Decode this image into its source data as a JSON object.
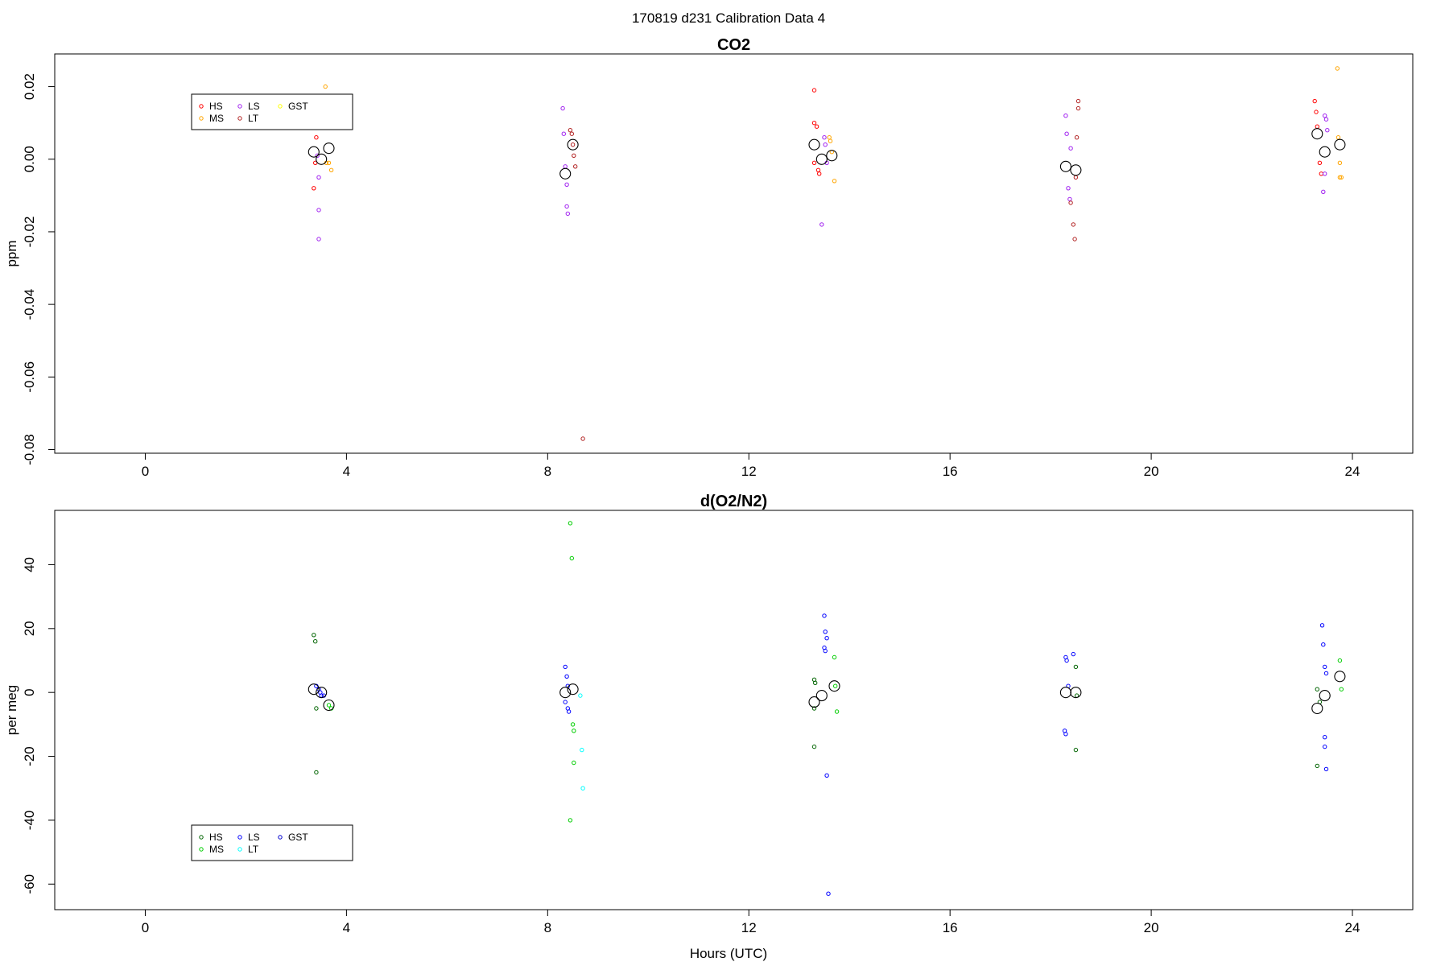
{
  "figure": {
    "title": "170819   d231   Calibration Data 4",
    "xlabel": "Hours (UTC)"
  },
  "chart_data": [
    {
      "type": "scatter",
      "title": "CO2",
      "ylabel": "ppm",
      "xlim": [
        -1.8,
        25.2
      ],
      "ylim": [
        -0.081,
        0.029
      ],
      "xticks": [
        0,
        4,
        8,
        12,
        16,
        20,
        24
      ],
      "xtick_labels": [
        "0",
        "4",
        "8",
        "12",
        "16",
        "20",
        "24"
      ],
      "yticks": [
        -0.08,
        -0.06,
        -0.04,
        -0.02,
        0.0,
        0.02
      ],
      "ytick_labels": [
        "-0.08",
        "-0.06",
        "-0.04",
        "-0.02",
        "0.00",
        "0.02"
      ],
      "legend": {
        "placement": "top-left",
        "ncol": 3
      },
      "series": [
        {
          "name": "HS",
          "color": "#ff0000",
          "points": [
            [
              3.35,
              -0.008
            ],
            [
              3.38,
              -0.001
            ],
            [
              3.4,
              0.006
            ],
            [
              3.45,
              0.009
            ],
            [
              13.3,
              0.019
            ],
            [
              13.3,
              0.01
            ],
            [
              13.35,
              0.009
            ],
            [
              13.3,
              -0.001
            ],
            [
              13.38,
              -0.003
            ],
            [
              13.4,
              -0.004
            ],
            [
              23.25,
              0.016
            ],
            [
              23.28,
              0.013
            ],
            [
              23.3,
              0.009
            ],
            [
              23.35,
              -0.001
            ],
            [
              23.38,
              -0.004
            ]
          ]
        },
        {
          "name": "MS",
          "color": "#ffa500",
          "points": [
            [
              3.58,
              0.02
            ],
            [
              3.6,
              -0.001
            ],
            [
              3.65,
              -0.001
            ],
            [
              3.7,
              -0.003
            ],
            [
              13.6,
              0.006
            ],
            [
              13.62,
              0.005
            ],
            [
              13.65,
              0.002
            ],
            [
              13.7,
              -0.006
            ],
            [
              23.7,
              0.025
            ],
            [
              23.72,
              0.006
            ],
            [
              23.75,
              -0.001
            ],
            [
              23.75,
              -0.005
            ],
            [
              23.78,
              -0.005
            ]
          ]
        },
        {
          "name": "LS",
          "color": "#a020f0",
          "points": [
            [
              3.42,
              0.001
            ],
            [
              3.45,
              -0.005
            ],
            [
              3.45,
              -0.014
            ],
            [
              3.45,
              -0.022
            ],
            [
              8.3,
              0.014
            ],
            [
              8.32,
              0.007
            ],
            [
              8.35,
              -0.002
            ],
            [
              8.38,
              -0.007
            ],
            [
              8.38,
              -0.013
            ],
            [
              8.4,
              -0.015
            ],
            [
              13.5,
              0.006
            ],
            [
              13.52,
              0.004
            ],
            [
              13.55,
              -0.001
            ],
            [
              13.45,
              -0.018
            ],
            [
              18.3,
              0.012
            ],
            [
              18.32,
              0.007
            ],
            [
              18.35,
              -0.008
            ],
            [
              18.38,
              -0.011
            ],
            [
              18.4,
              0.003
            ],
            [
              23.45,
              0.012
            ],
            [
              23.48,
              0.011
            ],
            [
              23.5,
              0.008
            ],
            [
              23.45,
              -0.004
            ],
            [
              23.42,
              -0.009
            ]
          ]
        },
        {
          "name": "LT",
          "color": "#b22222",
          "points": [
            [
              8.45,
              0.008
            ],
            [
              8.48,
              0.007
            ],
            [
              8.5,
              0.004
            ],
            [
              8.52,
              0.001
            ],
            [
              8.55,
              -0.002
            ],
            [
              8.7,
              -0.077
            ],
            [
              18.4,
              -0.012
            ],
            [
              18.45,
              -0.018
            ],
            [
              18.48,
              -0.022
            ],
            [
              18.5,
              -0.005
            ],
            [
              18.52,
              0.006
            ],
            [
              18.55,
              0.014
            ],
            [
              18.55,
              0.016
            ]
          ]
        },
        {
          "name": "GST",
          "color": "#ffff00",
          "points": []
        }
      ],
      "means": [
        [
          3.35,
          0.002
        ],
        [
          3.5,
          0.0
        ],
        [
          3.65,
          0.003
        ],
        [
          8.35,
          -0.004
        ],
        [
          8.5,
          0.004
        ],
        [
          13.3,
          0.004
        ],
        [
          13.45,
          0.0
        ],
        [
          13.65,
          0.001
        ],
        [
          18.3,
          -0.002
        ],
        [
          18.5,
          -0.003
        ],
        [
          23.3,
          0.007
        ],
        [
          23.45,
          0.002
        ],
        [
          23.75,
          0.004
        ]
      ]
    },
    {
      "type": "scatter",
      "title": "d(O2/N2)",
      "ylabel": "per meg",
      "xlim": [
        -1.8,
        25.2
      ],
      "ylim": [
        -68,
        57
      ],
      "xticks": [
        0,
        4,
        8,
        12,
        16,
        20,
        24
      ],
      "xtick_labels": [
        "0",
        "4",
        "8",
        "12",
        "16",
        "20",
        "24"
      ],
      "yticks": [
        -60,
        -40,
        -20,
        0,
        20,
        40
      ],
      "ytick_labels": [
        "-60",
        "-40",
        "-20",
        "0",
        "20",
        "40"
      ],
      "legend": {
        "placement": "bottom-left",
        "ncol": 3
      },
      "series": [
        {
          "name": "HS",
          "color": "#006400",
          "points": [
            [
              3.35,
              18
            ],
            [
              3.38,
              16
            ],
            [
              3.4,
              -5
            ],
            [
              3.4,
              -25
            ],
            [
              13.3,
              4
            ],
            [
              13.32,
              3
            ],
            [
              13.3,
              -5
            ],
            [
              13.3,
              -17
            ],
            [
              18.5,
              8
            ],
            [
              18.52,
              -1
            ],
            [
              18.5,
              -18
            ],
            [
              23.3,
              1
            ],
            [
              23.35,
              -3
            ],
            [
              23.3,
              -23
            ]
          ]
        },
        {
          "name": "MS",
          "color": "#00cd00",
          "points": [
            [
              3.65,
              -4
            ],
            [
              3.7,
              -5
            ],
            [
              8.45,
              53
            ],
            [
              8.48,
              42
            ],
            [
              8.5,
              -10
            ],
            [
              8.52,
              -12
            ],
            [
              8.52,
              -22
            ],
            [
              8.45,
              -40
            ],
            [
              13.7,
              11
            ],
            [
              13.72,
              2
            ],
            [
              13.75,
              -6
            ],
            [
              23.75,
              10
            ],
            [
              23.78,
              1
            ]
          ]
        },
        {
          "name": "LS",
          "color": "#0000ff",
          "points": [
            [
              3.4,
              2
            ],
            [
              3.45,
              1
            ],
            [
              3.48,
              0
            ],
            [
              3.5,
              -1
            ],
            [
              3.55,
              -1
            ],
            [
              8.35,
              8
            ],
            [
              8.38,
              5
            ],
            [
              8.4,
              2
            ],
            [
              8.35,
              -3
            ],
            [
              8.4,
              -5
            ],
            [
              8.42,
              -6
            ],
            [
              13.5,
              24
            ],
            [
              13.52,
              19
            ],
            [
              13.55,
              17
            ],
            [
              13.5,
              14
            ],
            [
              13.52,
              13
            ],
            [
              13.55,
              -26
            ],
            [
              13.58,
              -63
            ],
            [
              18.3,
              11
            ],
            [
              18.32,
              10
            ],
            [
              18.35,
              2
            ],
            [
              18.28,
              -12
            ],
            [
              18.3,
              -13
            ],
            [
              18.45,
              12
            ],
            [
              23.4,
              21
            ],
            [
              23.42,
              15
            ],
            [
              23.45,
              8
            ],
            [
              23.48,
              6
            ],
            [
              23.45,
              -14
            ],
            [
              23.45,
              -17
            ],
            [
              23.48,
              -24
            ]
          ]
        },
        {
          "name": "LT",
          "color": "#00ffff",
          "points": [
            [
              8.65,
              -1
            ],
            [
              8.68,
              -18
            ],
            [
              8.7,
              -30
            ]
          ]
        },
        {
          "name": "GST",
          "color": "#0000cd",
          "points": []
        }
      ],
      "means": [
        [
          3.35,
          1
        ],
        [
          3.5,
          0
        ],
        [
          3.65,
          -4
        ],
        [
          8.35,
          0
        ],
        [
          8.5,
          1
        ],
        [
          13.3,
          -3
        ],
        [
          13.45,
          -1
        ],
        [
          13.7,
          2
        ],
        [
          18.3,
          0
        ],
        [
          18.5,
          0
        ],
        [
          23.3,
          -5
        ],
        [
          23.45,
          -1
        ],
        [
          23.75,
          5
        ]
      ]
    }
  ]
}
